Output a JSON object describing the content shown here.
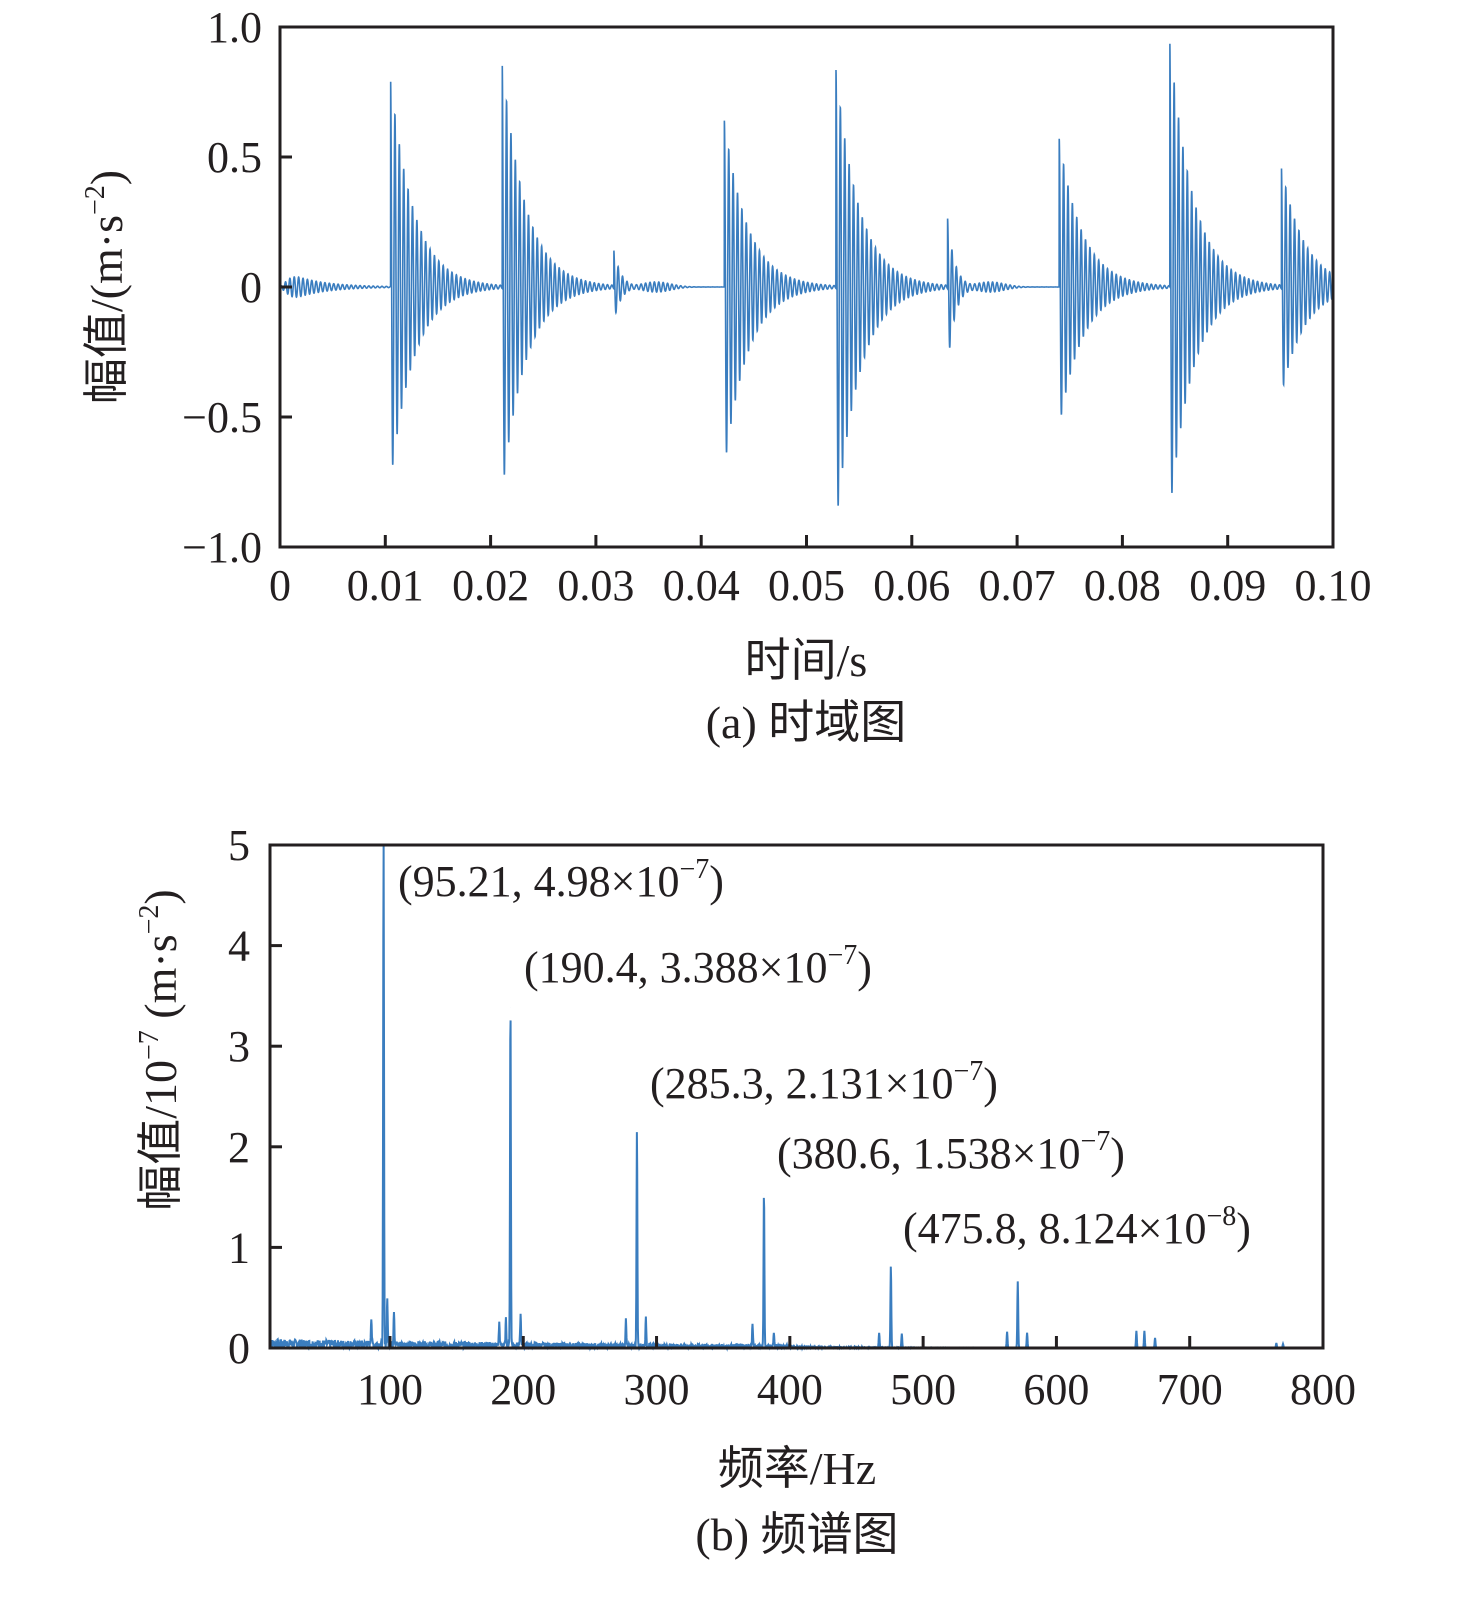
{
  "chart_data": [
    {
      "type": "line",
      "title": "",
      "caption": "(a) 时域图",
      "xlabel": "时间/s",
      "ylabel": "幅值/(m·s",
      "ylabel_exp": "−2",
      "ylabel_end": ")",
      "xlim": [
        0,
        0.1
      ],
      "ylim": [
        -1.0,
        1.0
      ],
      "xticks": [
        0,
        0.01,
        0.02,
        0.03,
        0.04,
        0.05,
        0.06,
        0.07,
        0.08,
        0.09,
        0.1
      ],
      "xtick_labels": [
        "0",
        "0.01",
        "0.02",
        "0.03",
        "0.04",
        "0.05",
        "0.06",
        "0.07",
        "0.08",
        "0.09",
        "0.10"
      ],
      "yticks": [
        1.0,
        0.5,
        0,
        -0.5,
        -1.0
      ],
      "ytick_labels": [
        "1.0",
        "0.5",
        "0",
        "−0.5",
        "−1.0"
      ],
      "color": "#3a7dbf",
      "grid": false,
      "initial_hump": {
        "time": 0,
        "amplitude": 0.05
      },
      "bursts": [
        {
          "onset": 0.0105,
          "peak_pos": 0.8,
          "peak_neg": -0.75
        },
        {
          "onset": 0.0211,
          "peak_pos": 0.87,
          "peak_neg": -0.8
        },
        {
          "onset": 0.0317,
          "peak_pos": 0.15,
          "peak_neg": -0.14
        },
        {
          "onset": 0.0422,
          "peak_pos": 0.64,
          "peak_neg": -0.7
        },
        {
          "onset": 0.0528,
          "peak_pos": 0.84,
          "peak_neg": -0.93
        },
        {
          "onset": 0.0634,
          "peak_pos": 0.27,
          "peak_neg": -0.32
        },
        {
          "onset": 0.074,
          "peak_pos": 0.57,
          "peak_neg": -0.54
        },
        {
          "onset": 0.0845,
          "peak_pos": 0.95,
          "peak_neg": -0.87
        },
        {
          "onset": 0.0951,
          "peak_pos": 0.47,
          "peak_neg": -0.42
        }
      ]
    },
    {
      "type": "line",
      "title": "",
      "caption": "(b) 频谱图",
      "xlabel": "频率/Hz",
      "ylabel": "幅值/10",
      "ylabel_exp1": "−7",
      "ylabel_mid": " (m·s",
      "ylabel_exp2": "−2",
      "ylabel_end": ")",
      "xlim": [
        10,
        800
      ],
      "ylim": [
        0,
        5
      ],
      "xticks": [
        100,
        200,
        300,
        400,
        500,
        600,
        700,
        800
      ],
      "xtick_labels": [
        "100",
        "200",
        "300",
        "400",
        "500",
        "600",
        "700",
        "800"
      ],
      "yticks": [
        0,
        1,
        2,
        3,
        4,
        5
      ],
      "ytick_labels": [
        "0",
        "1",
        "2",
        "3",
        "4",
        "5"
      ],
      "color": "#3a7dbf",
      "grid": false,
      "peaks": [
        {
          "x": 95.21,
          "y": 4.98
        },
        {
          "x": 190.4,
          "y": 3.388
        },
        {
          "x": 285.3,
          "y": 2.131
        },
        {
          "x": 380.6,
          "y": 1.538
        },
        {
          "x": 475.8,
          "y": 0.8124
        },
        {
          "x": 571.0,
          "y": 0.66
        },
        {
          "x": 660.0,
          "y": 0.17
        },
        {
          "x": 666.0,
          "y": 0.17
        },
        {
          "x": 765.0,
          "y": 0.05
        }
      ],
      "sidebands": [
        {
          "x": 86,
          "y": 0.28
        },
        {
          "x": 98,
          "y": 0.45
        },
        {
          "x": 103,
          "y": 0.35
        },
        {
          "x": 182,
          "y": 0.22
        },
        {
          "x": 187,
          "y": 0.25
        },
        {
          "x": 198,
          "y": 0.3
        },
        {
          "x": 277,
          "y": 0.25
        },
        {
          "x": 292,
          "y": 0.27
        },
        {
          "x": 372,
          "y": 0.22
        },
        {
          "x": 388,
          "y": 0.12
        },
        {
          "x": 467,
          "y": 0.15
        },
        {
          "x": 484,
          "y": 0.14
        },
        {
          "x": 563,
          "y": 0.16
        },
        {
          "x": 578,
          "y": 0.15
        },
        {
          "x": 674,
          "y": 0.1
        },
        {
          "x": 770,
          "y": 0.04
        }
      ],
      "annotations": [
        {
          "text": "(95.21, 4.98×10",
          "exp": "−7",
          "end": ")"
        },
        {
          "text": "(190.4, 3.388×10",
          "exp": "−7",
          "end": ")"
        },
        {
          "text": "(285.3, 2.131×10",
          "exp": "−7",
          "end": ")"
        },
        {
          "text": "(380.6, 1.538×10",
          "exp": "−7",
          "end": ")"
        },
        {
          "text": "(475.8, 8.124×10",
          "exp": "−8",
          "end": ")"
        }
      ]
    }
  ]
}
